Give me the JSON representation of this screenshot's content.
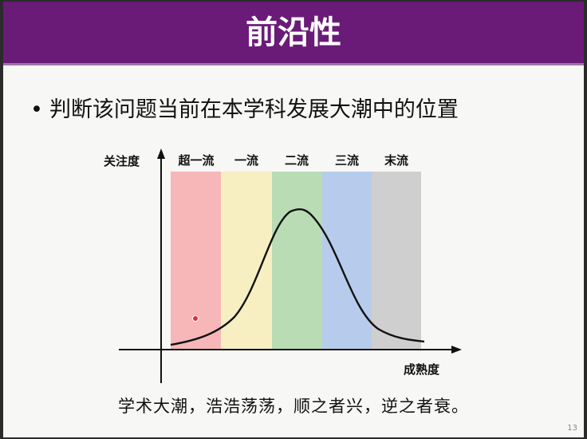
{
  "slide": {
    "title": "前沿性",
    "bullet": "判断该问题当前在本学科发展大潮中的位置",
    "quote": "学术大潮，浩浩荡荡，顺之者兴，逆之者衰。",
    "page_number": "13"
  },
  "diagram": {
    "y_axis_label": "关注度",
    "x_axis_label": "成熟度",
    "bands": [
      {
        "label": "超一流",
        "color": "#f7b7b9"
      },
      {
        "label": "一流",
        "color": "#f7efc2"
      },
      {
        "label": "二流",
        "color": "#b9dcb5"
      },
      {
        "label": "三流",
        "color": "#b7ccec"
      },
      {
        "label": "末流",
        "color": "#cfcfcf"
      }
    ],
    "curve_color": "#111111",
    "marker_color": "#d8303a"
  }
}
